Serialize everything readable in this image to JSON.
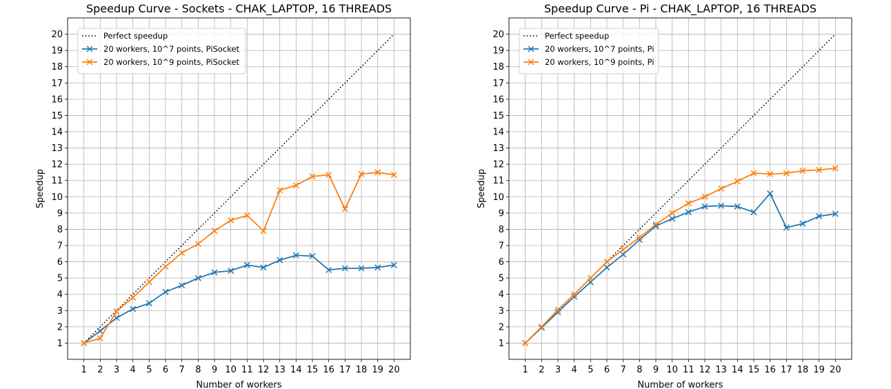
{
  "chart_data": [
    {
      "type": "line",
      "title": "Speedup Curve - Sockets - CHAK_LAPTOP, 16 THREADS",
      "xlabel": "Number of workers",
      "ylabel": "Speedup",
      "xlim": [
        0,
        21
      ],
      "ylim": [
        0,
        21
      ],
      "xticks": [
        "1",
        "2",
        "3",
        "4",
        "5",
        "6",
        "7",
        "8",
        "9",
        "10",
        "11",
        "12",
        "13",
        "14",
        "15",
        "16",
        "17",
        "18",
        "19",
        "20"
      ],
      "yticks": [
        "1",
        "2",
        "3",
        "4",
        "5",
        "6",
        "7",
        "8",
        "9",
        "10",
        "11",
        "12",
        "13",
        "14",
        "15",
        "16",
        "17",
        "18",
        "19",
        "20"
      ],
      "grid": true,
      "legend_position": "top-left",
      "x": [
        1,
        2,
        3,
        4,
        5,
        6,
        7,
        8,
        9,
        10,
        11,
        12,
        13,
        14,
        15,
        16,
        17,
        18,
        19,
        20
      ],
      "series": [
        {
          "name": "Perfect speedup",
          "color": "#000000",
          "style": "dotted",
          "marker": "none",
          "values": [
            1,
            2,
            3,
            4,
            5,
            6,
            7,
            8,
            9,
            10,
            11,
            12,
            13,
            14,
            15,
            16,
            17,
            18,
            19,
            20
          ]
        },
        {
          "name": "20 workers, 10^7 points, PiSocket",
          "color": "#1f77b4",
          "style": "solid",
          "marker": "x",
          "values": [
            1.0,
            1.75,
            2.55,
            3.1,
            3.45,
            4.15,
            4.55,
            5.0,
            5.35,
            5.45,
            5.8,
            5.65,
            6.1,
            6.4,
            6.35,
            5.5,
            5.6,
            5.6,
            5.65,
            5.8
          ]
        },
        {
          "name": "20 workers, 10^9 points, PiSocket",
          "color": "#ff7f0e",
          "style": "solid",
          "marker": "x",
          "values": [
            1.0,
            1.3,
            2.95,
            3.8,
            4.75,
            5.7,
            6.55,
            7.1,
            7.9,
            8.55,
            8.85,
            7.9,
            10.4,
            10.7,
            11.25,
            11.35,
            9.25,
            11.4,
            11.5,
            11.35
          ]
        }
      ]
    },
    {
      "type": "line",
      "title": "Speedup Curve - Pi - CHAK_LAPTOP, 16 THREADS",
      "xlabel": "Number of workers",
      "ylabel": "Speedup",
      "xlim": [
        0,
        21
      ],
      "ylim": [
        0,
        21
      ],
      "xticks": [
        "1",
        "2",
        "3",
        "4",
        "5",
        "6",
        "7",
        "8",
        "9",
        "10",
        "11",
        "12",
        "13",
        "14",
        "15",
        "16",
        "17",
        "18",
        "19",
        "20"
      ],
      "yticks": [
        "1",
        "2",
        "3",
        "4",
        "5",
        "6",
        "7",
        "8",
        "9",
        "10",
        "11",
        "12",
        "13",
        "14",
        "15",
        "16",
        "17",
        "18",
        "19",
        "20"
      ],
      "grid": true,
      "legend_position": "top-left",
      "x": [
        1,
        2,
        3,
        4,
        5,
        6,
        7,
        8,
        9,
        10,
        11,
        12,
        13,
        14,
        15,
        16,
        17,
        18,
        19,
        20
      ],
      "series": [
        {
          "name": "Perfect speedup",
          "color": "#000000",
          "style": "dotted",
          "marker": "none",
          "values": [
            1,
            2,
            3,
            4,
            5,
            6,
            7,
            8,
            9,
            10,
            11,
            12,
            13,
            14,
            15,
            16,
            17,
            18,
            19,
            20
          ]
        },
        {
          "name": "20 workers, 10^7 points, Pi",
          "color": "#1f77b4",
          "style": "solid",
          "marker": "x",
          "values": [
            1.0,
            1.95,
            2.9,
            3.85,
            4.75,
            5.65,
            6.45,
            7.35,
            8.2,
            8.65,
            9.05,
            9.4,
            9.45,
            9.4,
            9.05,
            10.2,
            8.1,
            8.35,
            8.8,
            8.95
          ]
        },
        {
          "name": "20 workers, 10^9 points, Pi",
          "color": "#ff7f0e",
          "style": "solid",
          "marker": "x",
          "values": [
            1.0,
            2.0,
            3.05,
            4.0,
            5.0,
            6.0,
            6.75,
            7.5,
            8.3,
            9.0,
            9.6,
            10.0,
            10.5,
            10.95,
            11.45,
            11.4,
            11.45,
            11.6,
            11.65,
            11.75
          ]
        }
      ]
    }
  ]
}
